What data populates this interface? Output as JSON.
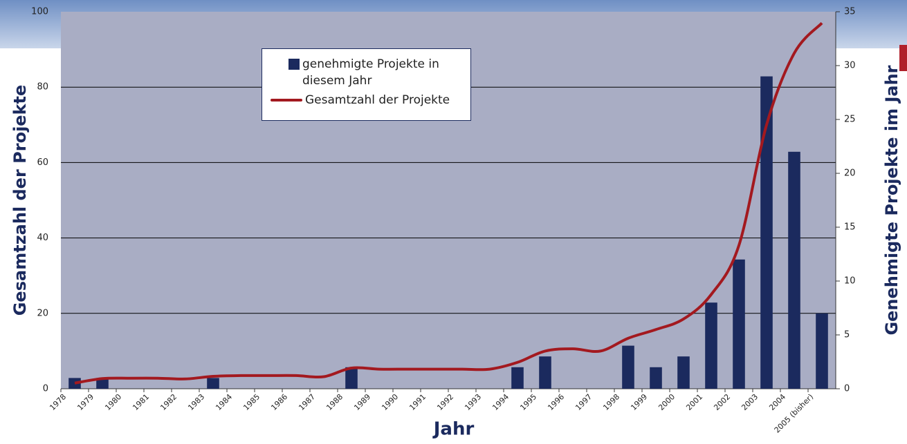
{
  "chart_data": {
    "type": "bar",
    "xlabel": "Jahr",
    "ylabel": "Gesamtzahl der Projekte",
    "y2label": "Genehmigte Projekte im Jahr",
    "categories": [
      "1978",
      "1979",
      "1980",
      "1981",
      "1982",
      "1983",
      "1984",
      "1985",
      "1986",
      "1987",
      "1988",
      "1989",
      "1990",
      "1991",
      "1992",
      "1993",
      "1994",
      "1995",
      "1996",
      "1997",
      "1998",
      "1999",
      "2000",
      "2001",
      "2002",
      "2003",
      "2004",
      "2005 (bisher)"
    ],
    "series": [
      {
        "name": "genehmigte Projekte in diesem Jahr",
        "type": "bar",
        "axis": "y2",
        "color": "#1b2a5e",
        "values": [
          1,
          1,
          0,
          0,
          0,
          1,
          0,
          0,
          0,
          0,
          2,
          0,
          0,
          0,
          0,
          0,
          2,
          3,
          0,
          0,
          4,
          2,
          3,
          8,
          12,
          29,
          22,
          7
        ]
      },
      {
        "name": "Gesamtzahl der Projekte",
        "type": "line",
        "color": "#a3191f",
        "values": [
          1.5,
          2.7,
          2.8,
          2.8,
          2.6,
          3.3,
          3.5,
          3.5,
          3.5,
          3.2,
          5.5,
          5.2,
          5.2,
          5.2,
          5.2,
          5.2,
          7,
          10,
          10.6,
          10,
          13.4,
          15.7,
          18.5,
          25,
          38,
          70,
          89,
          97
        ]
      }
    ],
    "ylim": [
      0,
      100
    ],
    "yticks": [
      0,
      20,
      40,
      60,
      80,
      100
    ],
    "y2lim": [
      0,
      35
    ],
    "y2ticks": [
      0,
      5,
      10,
      15,
      20,
      25,
      30,
      35
    ],
    "grid": true
  }
}
